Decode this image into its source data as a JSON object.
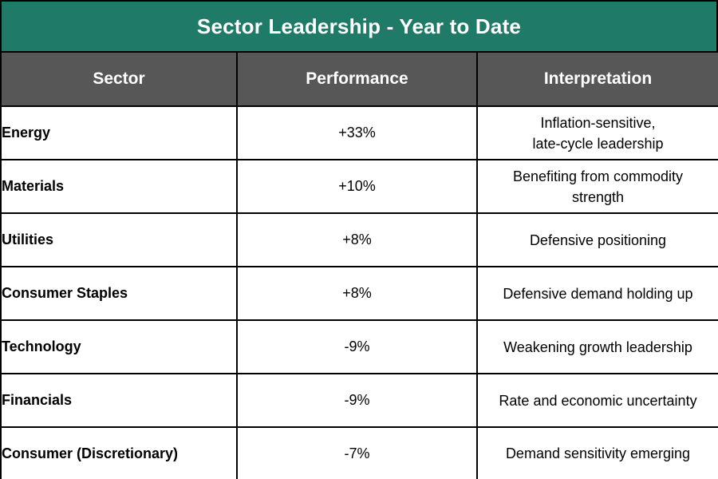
{
  "title": "Sector Leadership - Year to Date",
  "headers": {
    "sector": "Sector",
    "performance": "Performance",
    "interpretation": "Interpretation"
  },
  "rows": [
    {
      "sector": "Energy",
      "performance": "+33%",
      "interpretation": "Inflation-sensitive,\nlate-cycle leadership"
    },
    {
      "sector": "Materials",
      "performance": "+10%",
      "interpretation": "Benefiting from commodity\nstrength"
    },
    {
      "sector": "Utilities",
      "performance": "+8%",
      "interpretation": "Defensive positioning"
    },
    {
      "sector": "Consumer Staples",
      "performance": "+8%",
      "interpretation": "Defensive demand holding up"
    },
    {
      "sector": "Technology",
      "performance": "-9%",
      "interpretation": "Weakening growth leadership"
    },
    {
      "sector": "Financials",
      "performance": "-9%",
      "interpretation": "Rate and economic uncertainty"
    },
    {
      "sector": "Consumer (Discretionary)",
      "performance": "-7%",
      "interpretation": "Demand sensitivity emerging"
    }
  ],
  "colors": {
    "title_background": "#1f7a68",
    "header_background": "#575757",
    "header_text": "#ffffff",
    "border": "#000000"
  }
}
